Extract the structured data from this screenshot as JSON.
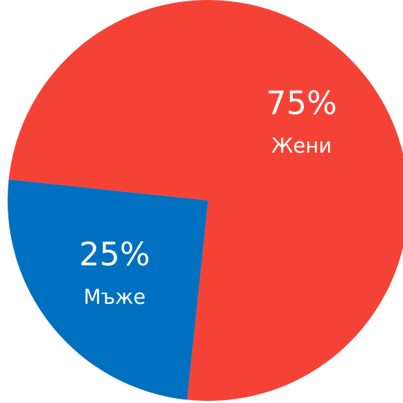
{
  "chart_data": {
    "type": "pie",
    "categories": [
      "Жени",
      "Мъже"
    ],
    "values": [
      75,
      25
    ],
    "value_labels": [
      "75%",
      "25%"
    ],
    "colors": [
      "#f44336",
      "#0070c0"
    ]
  }
}
